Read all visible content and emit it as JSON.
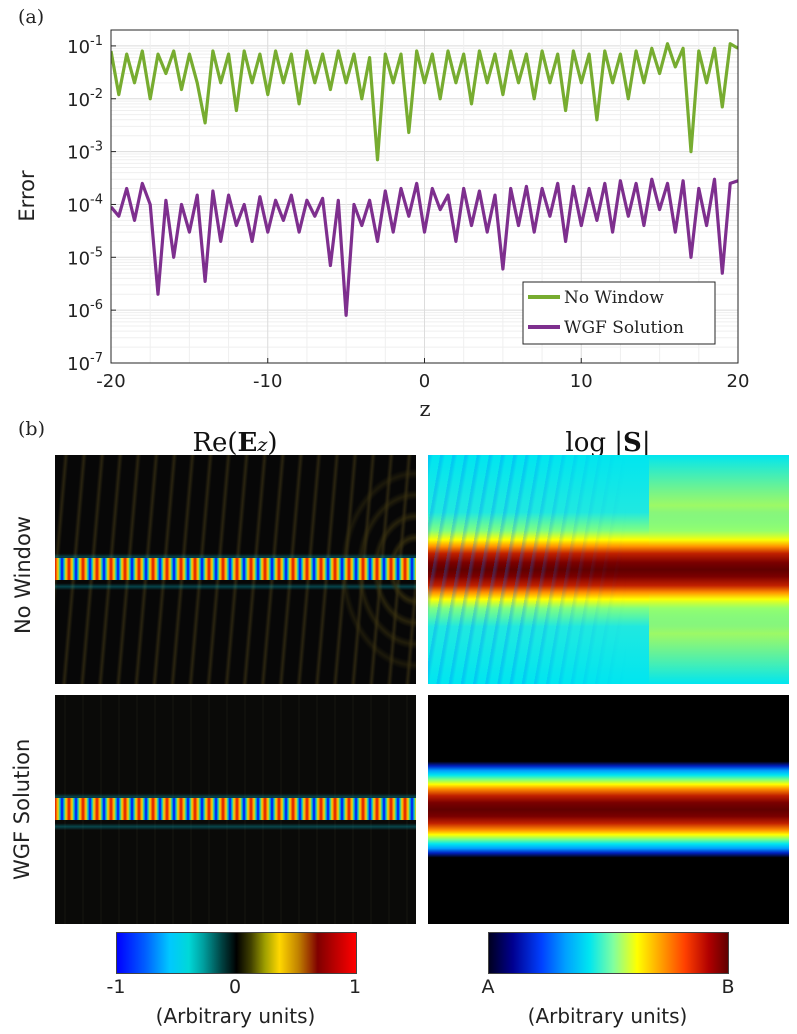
{
  "panel_a_label": "(a)",
  "panel_b_label": "(b)",
  "chart_data": {
    "type": "line",
    "yscale": "log",
    "xlabel": "z",
    "ylabel": "Error",
    "xlim": [
      -20,
      20
    ],
    "ylim": [
      1e-07,
      0.2
    ],
    "xticks": [
      -20,
      -10,
      0,
      10,
      20
    ],
    "xtick_labels": [
      "-20",
      "-10",
      "0",
      "10",
      "20"
    ],
    "ytick_exponents": [
      -1,
      -2,
      -3,
      -4,
      -5,
      -6,
      -7
    ],
    "ytick_base": "10",
    "grid": true,
    "legend_position": "bottom-right",
    "series": [
      {
        "name": "No Window",
        "color": "#77ac30",
        "x": [
          -20,
          -19.5,
          -19,
          -18.5,
          -18,
          -17.5,
          -17,
          -16.5,
          -16,
          -15.5,
          -15,
          -14.5,
          -14,
          -13.5,
          -13,
          -12.5,
          -12,
          -11.5,
          -11,
          -10.5,
          -10,
          -9.5,
          -9,
          -8.5,
          -8,
          -7.5,
          -7,
          -6.5,
          -6,
          -5.5,
          -5,
          -4.5,
          -4,
          -3.5,
          -3,
          -2.5,
          -2,
          -1.5,
          -1,
          -0.5,
          0,
          0.5,
          1,
          1.5,
          2,
          2.5,
          3,
          3.5,
          4,
          4.5,
          5,
          5.5,
          6,
          6.5,
          7,
          7.5,
          8,
          8.5,
          9,
          9.5,
          10,
          10.5,
          11,
          11.5,
          12,
          12.5,
          13,
          13.5,
          14,
          14.5,
          15,
          15.5,
          16,
          16.5,
          17,
          17.5,
          18,
          18.5,
          19,
          19.5,
          20
        ],
        "y": [
          0.08,
          0.012,
          0.07,
          0.02,
          0.08,
          0.01,
          0.07,
          0.03,
          0.08,
          0.015,
          0.07,
          0.02,
          0.0035,
          0.08,
          0.02,
          0.07,
          0.006,
          0.08,
          0.02,
          0.07,
          0.012,
          0.08,
          0.02,
          0.07,
          0.008,
          0.08,
          0.02,
          0.07,
          0.015,
          0.08,
          0.02,
          0.07,
          0.01,
          0.06,
          0.0007,
          0.07,
          0.02,
          0.07,
          0.0023,
          0.08,
          0.02,
          0.07,
          0.01,
          0.08,
          0.02,
          0.07,
          0.008,
          0.08,
          0.02,
          0.07,
          0.012,
          0.08,
          0.02,
          0.07,
          0.01,
          0.08,
          0.02,
          0.07,
          0.006,
          0.08,
          0.02,
          0.07,
          0.004,
          0.08,
          0.02,
          0.07,
          0.01,
          0.08,
          0.02,
          0.09,
          0.03,
          0.11,
          0.04,
          0.09,
          0.001,
          0.08,
          0.02,
          0.09,
          0.007,
          0.11,
          0.09
        ]
      },
      {
        "name": "WGF Solution",
        "color": "#7e2f8e",
        "x": [
          -20,
          -19.5,
          -19,
          -18.5,
          -18,
          -17.5,
          -17,
          -16.5,
          -16,
          -15.5,
          -15,
          -14.5,
          -14,
          -13.5,
          -13,
          -12.5,
          -12,
          -11.5,
          -11,
          -10.5,
          -10,
          -9.5,
          -9,
          -8.5,
          -8,
          -7.5,
          -7,
          -6.5,
          -6,
          -5.5,
          -5,
          -4.5,
          -4,
          -3.5,
          -3,
          -2.5,
          -2,
          -1.5,
          -1,
          -0.5,
          0,
          0.5,
          1,
          1.5,
          2,
          2.5,
          3,
          3.5,
          4,
          4.5,
          5,
          5.5,
          6,
          6.5,
          7,
          7.5,
          8,
          8.5,
          9,
          9.5,
          10,
          10.5,
          11,
          11.5,
          12,
          12.5,
          13,
          13.5,
          14,
          14.5,
          15,
          15.5,
          16,
          16.5,
          17,
          17.5,
          18,
          18.5,
          19,
          19.5,
          20
        ],
        "y": [
          9e-05,
          6e-05,
          0.0002,
          5e-05,
          0.00025,
          0.0001,
          2e-06,
          0.00012,
          1e-05,
          0.0001,
          3e-05,
          0.00015,
          3.5e-06,
          0.00018,
          2e-05,
          0.00015,
          4e-05,
          0.0001,
          2e-05,
          0.00014,
          3e-05,
          0.00012,
          5e-05,
          0.00015,
          3e-05,
          0.00012,
          6e-05,
          0.00013,
          7e-06,
          0.00012,
          8e-07,
          0.0001,
          4e-05,
          0.00012,
          2e-05,
          0.00018,
          3e-05,
          0.0002,
          6e-05,
          0.00025,
          3e-05,
          0.0002,
          8e-05,
          0.00015,
          2e-05,
          0.0002,
          4e-05,
          0.00018,
          3e-05,
          0.00015,
          6e-06,
          0.0002,
          4e-05,
          0.00022,
          3e-05,
          0.0002,
          6e-05,
          0.00025,
          2e-05,
          0.00022,
          4e-05,
          0.0002,
          5e-05,
          0.00025,
          3e-05,
          0.00028,
          6e-05,
          0.00025,
          4e-05,
          0.0003,
          8e-05,
          0.00025,
          3e-05,
          0.00028,
          1e-05,
          0.0002,
          4e-05,
          0.0003,
          5e-06,
          0.00025,
          0.00028
        ]
      }
    ]
  },
  "panel_b": {
    "col_titles": [
      "Re(E_z)",
      "log |S|"
    ],
    "row_labels": [
      "No Window",
      "WGF Solution"
    ],
    "colorbar_left": {
      "ticks": [
        "-1",
        "0",
        "1"
      ],
      "unit_label": "(Arbitrary units)"
    },
    "colorbar_right": {
      "ticks": [
        "A",
        "B"
      ],
      "unit_label": "(Arbitrary units)"
    }
  }
}
